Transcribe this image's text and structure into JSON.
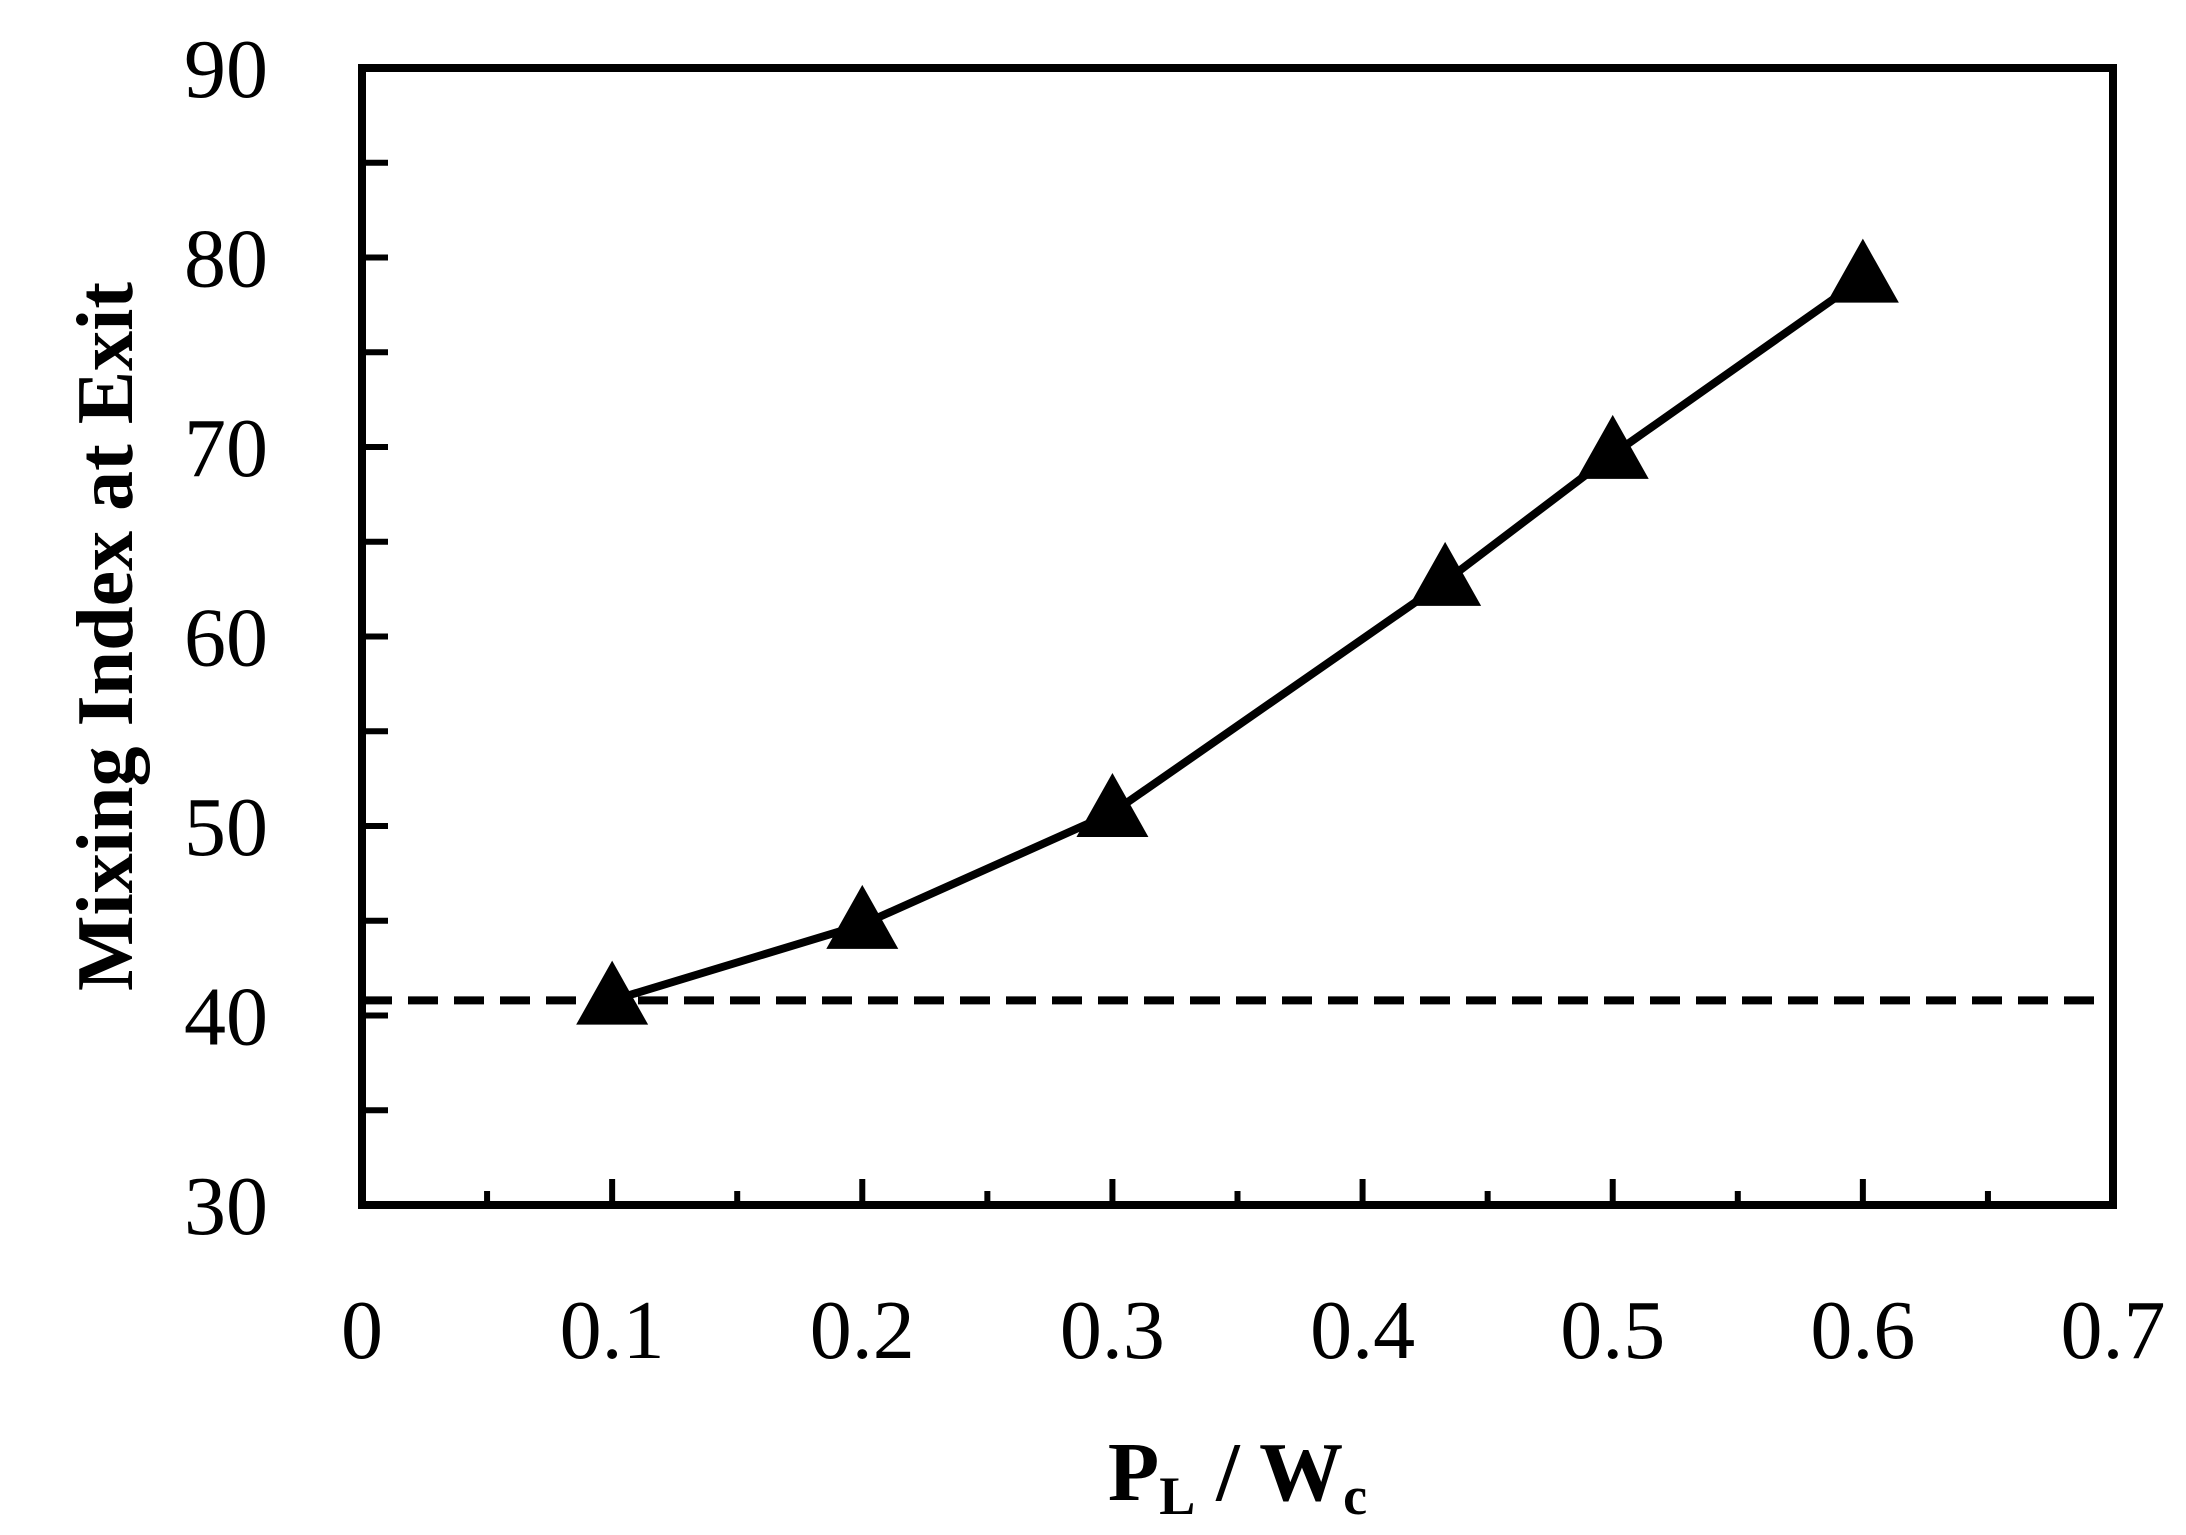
{
  "chart_data": {
    "type": "line",
    "title": "",
    "xlabel": {
      "main": "P",
      "main_sub": "L",
      "sep": " / ",
      "denom": "W",
      "denom_sub": "c"
    },
    "ylabel": "Mixing Index at Exit",
    "xlim": [
      0,
      0.7
    ],
    "ylim": [
      30,
      90
    ],
    "x_ticks": [
      "0",
      "0.1",
      "0.2",
      "0.3",
      "0.4",
      "0.5",
      "0.6",
      "0.7"
    ],
    "y_ticks": [
      "30",
      "40",
      "50",
      "60",
      "70",
      "80",
      "90"
    ],
    "x_tick_values": [
      0,
      0.1,
      0.2,
      0.3,
      0.4,
      0.5,
      0.6,
      0.7
    ],
    "y_tick_values": [
      30,
      40,
      50,
      60,
      70,
      80,
      90
    ],
    "x_minor_ticks": [
      0.05,
      0.15,
      0.25,
      0.35,
      0.45,
      0.55,
      0.65
    ],
    "y_minor_ticks": [
      35,
      45,
      55,
      65,
      75,
      85
    ],
    "grid": false,
    "series": [
      {
        "marker": "triangle",
        "color": "#000000",
        "x": [
          0.1,
          0.2,
          0.3,
          0.433,
          0.5,
          0.6
        ],
        "y": [
          40.8,
          44.8,
          50.7,
          62.9,
          69.6,
          78.9
        ]
      }
    ],
    "reference_line": {
      "y": 40.8,
      "style": "dashed",
      "color": "#000000"
    }
  }
}
